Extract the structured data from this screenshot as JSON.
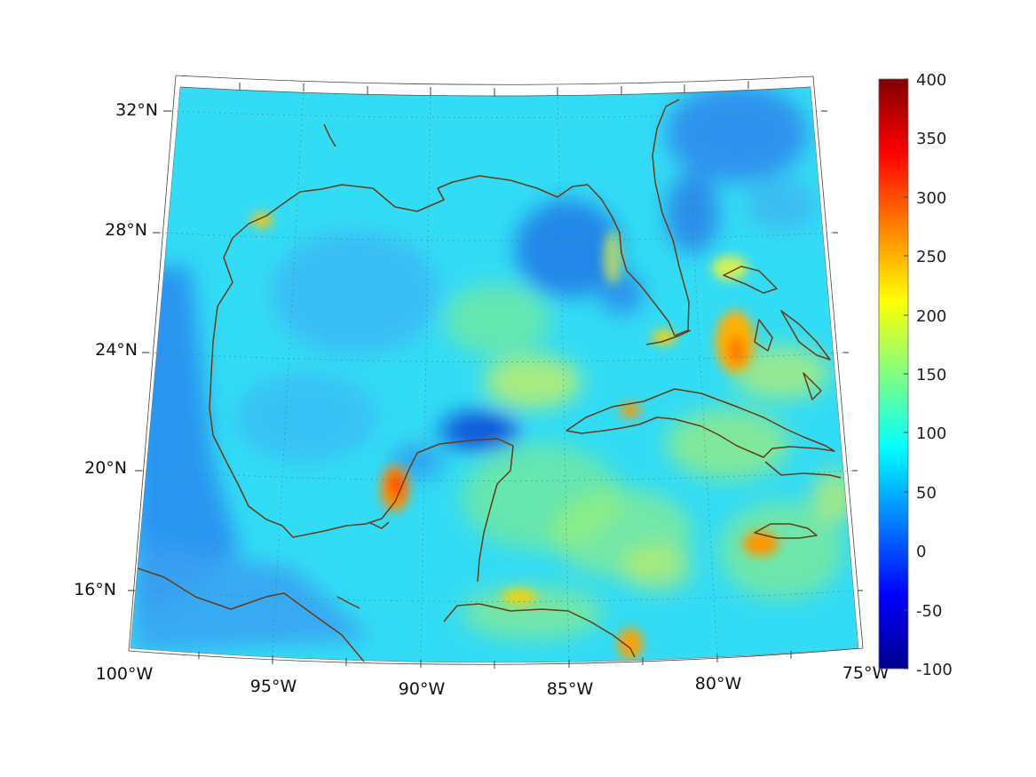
{
  "map": {
    "projection": "conic",
    "region": "Gulf of Mexico and Caribbean",
    "lon_range": [
      -100,
      -75
    ],
    "lat_range": [
      14,
      33
    ],
    "grid": true,
    "coastline_color": "#6b3a10",
    "lon_ticks": [
      {
        "value": -100,
        "label": "100°W"
      },
      {
        "value": -95,
        "label": "95°W"
      },
      {
        "value": -90,
        "label": "90°W"
      },
      {
        "value": -85,
        "label": "85°W"
      },
      {
        "value": -80,
        "label": "80°W"
      },
      {
        "value": -75,
        "label": "75°W"
      }
    ],
    "lat_ticks": [
      {
        "value": 32,
        "label": "32°N"
      },
      {
        "value": 28,
        "label": "28°N"
      },
      {
        "value": 24,
        "label": "24°N"
      },
      {
        "value": 20,
        "label": "20°N"
      },
      {
        "value": 16,
        "label": "16°N"
      }
    ]
  },
  "colorbar": {
    "colormap": "jet",
    "range": [
      -100,
      400
    ],
    "ticks": [
      "400",
      "350",
      "300",
      "250",
      "200",
      "150",
      "100",
      "50",
      "0",
      "-50",
      "-100"
    ],
    "colors": [
      "#00008f",
      "#0000ff",
      "#0080ff",
      "#00ffff",
      "#80ff80",
      "#ffff00",
      "#ff8000",
      "#ff0000",
      "#800000"
    ]
  }
}
